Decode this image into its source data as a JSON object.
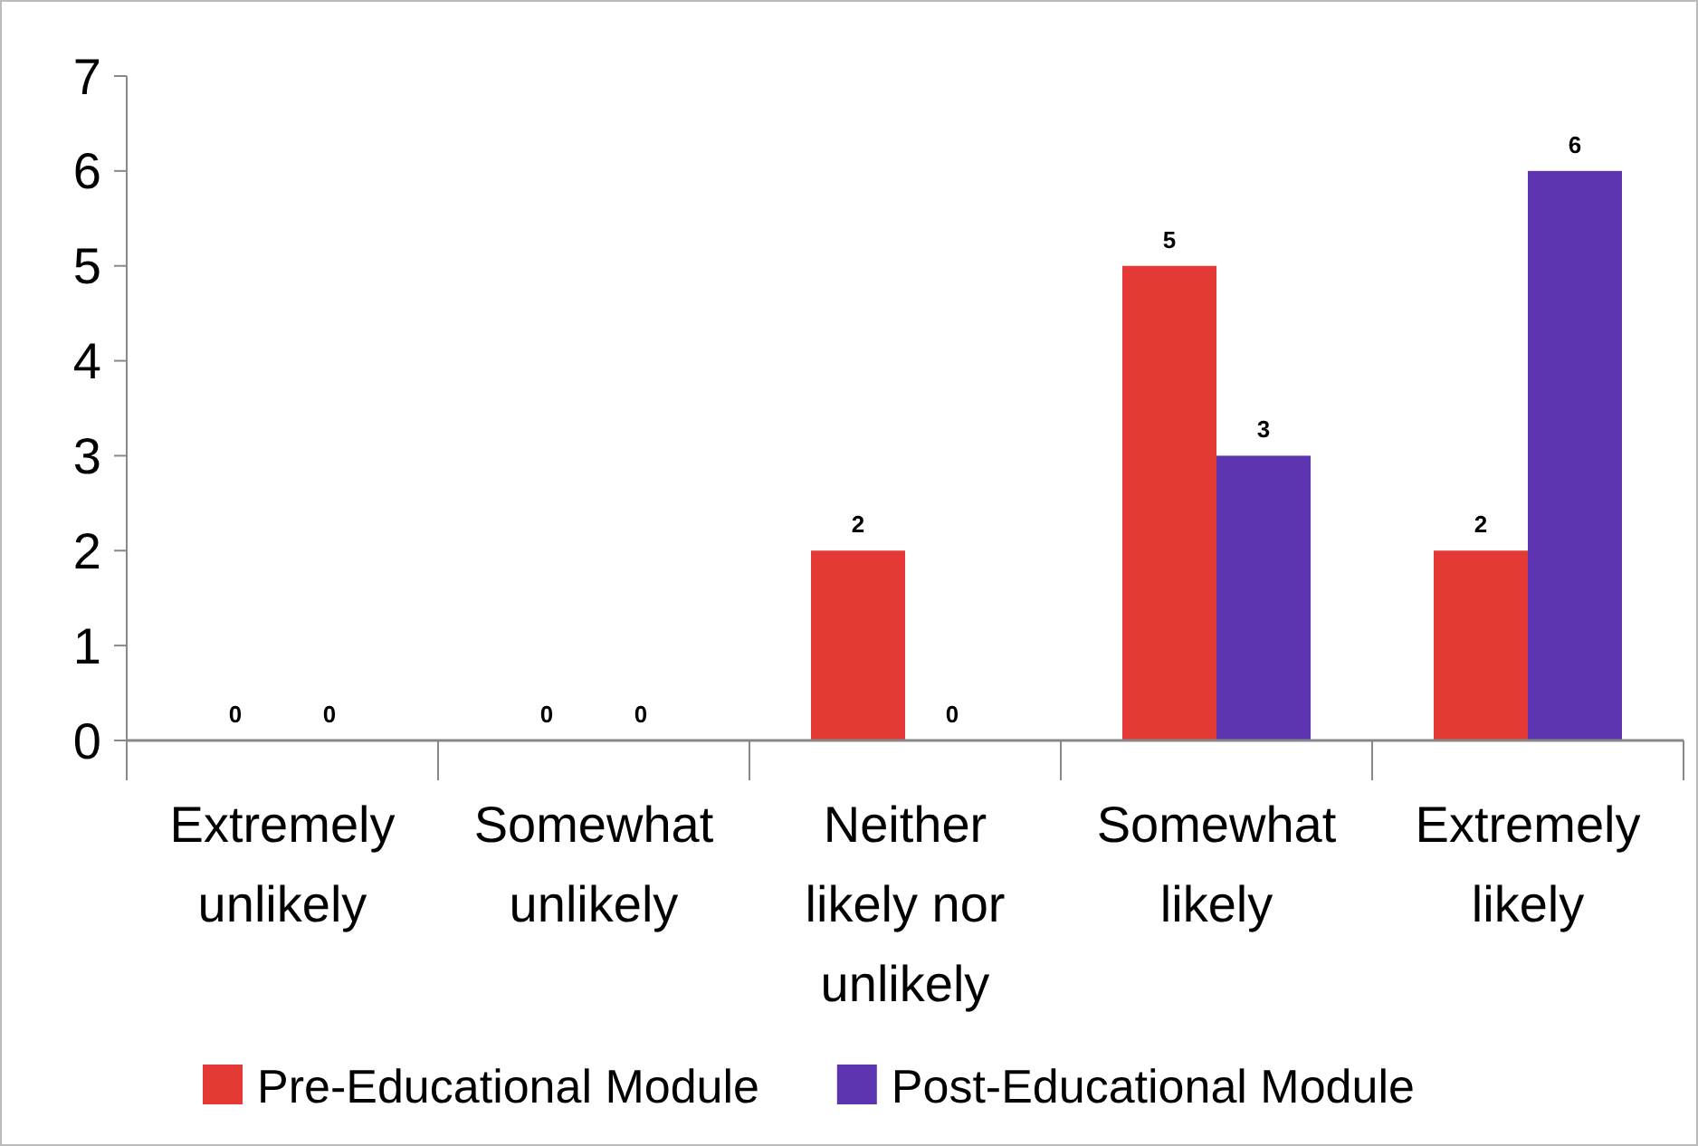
{
  "chart_data": {
    "type": "bar",
    "categories": [
      "Extremely unlikely",
      "Somewhat unlikely",
      "Neither likely nor unlikely",
      "Somewhat likely",
      "Extremely likely"
    ],
    "series": [
      {
        "name": "Pre-Educational Module",
        "color": "#e53935",
        "values": [
          0,
          0,
          2,
          5,
          2
        ]
      },
      {
        "name": "Post-Educational Module",
        "color": "#5e35b1",
        "values": [
          0,
          0,
          0,
          3,
          6
        ]
      }
    ],
    "ylim": [
      0,
      7
    ],
    "yticks": [
      0,
      1,
      2,
      3,
      4,
      5,
      6,
      7
    ],
    "data_labels": true,
    "legend": "bottom",
    "grid": false
  }
}
